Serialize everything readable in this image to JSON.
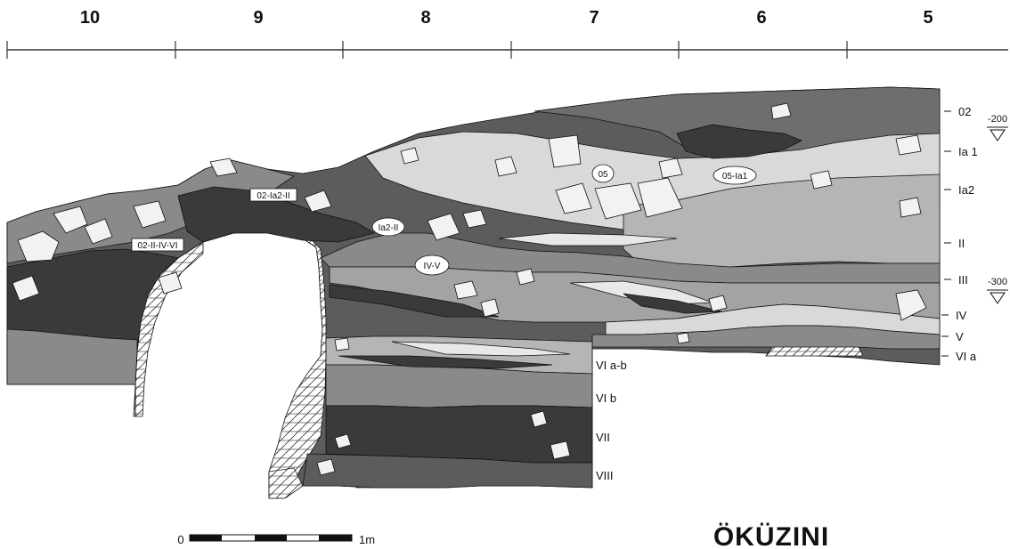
{
  "grid_columns": [
    "10",
    "9",
    "8",
    "7",
    "6",
    "5"
  ],
  "layers_right": [
    "02",
    "Ia 1",
    "Ia2",
    "II",
    "III",
    "IV",
    "V",
    "VI a"
  ],
  "layers_center": [
    "VI a-b",
    "VI b",
    "VII",
    "VIII"
  ],
  "sample_tags": [
    "02-II-IV-VI",
    "02-Ia2-II"
  ],
  "sample_ovals": [
    "Ia2-II",
    "IV-V",
    "05",
    "05-Ia1"
  ],
  "depth_markers": [
    "-200",
    "-300"
  ],
  "scale": {
    "start": "0",
    "end": "1m"
  },
  "title": "ÖKÜZINI",
  "colors": {
    "darkest": "#3a3a3a",
    "dark": "#5c5c5c",
    "mid": "#8a8a8a",
    "light": "#b5b5b5",
    "lightest": "#d9d9d9",
    "outline": "#111111"
  }
}
